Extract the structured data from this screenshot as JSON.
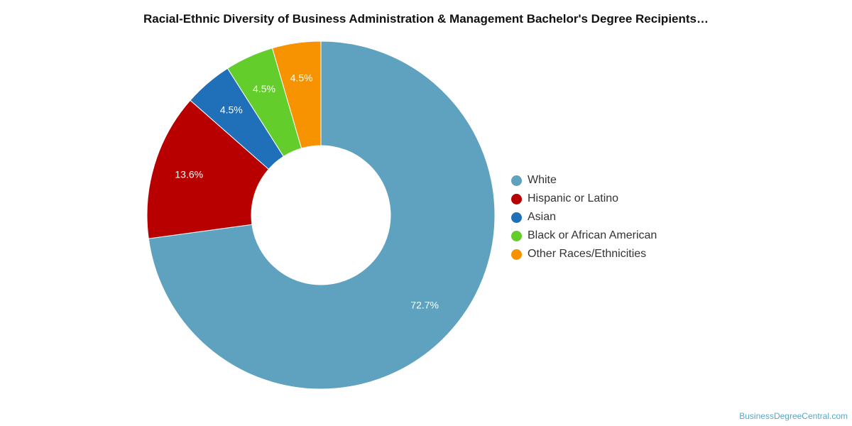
{
  "chart_data": {
    "type": "pie",
    "title": "Racial-Ethnic Diversity of Business Administration & Management Bachelor's Degree Recipients…",
    "categories": [
      "White",
      "Hispanic or Latino",
      "Asian",
      "Black or African American",
      "Other Races/Ethnicities"
    ],
    "values": [
      72.7,
      13.6,
      4.5,
      4.5,
      4.5
    ],
    "value_labels": [
      "72.7%",
      "13.6%",
      "4.5%",
      "4.5%",
      "4.5%"
    ],
    "colors": [
      "#5ea2bf",
      "#b80000",
      "#1f70b8",
      "#62cd2b",
      "#f79300"
    ],
    "donut": true,
    "legend": "right",
    "start_angle_deg": 0,
    "direction": "clockwise"
  },
  "footer": {
    "source": "BusinessDegreeCentral.com"
  }
}
